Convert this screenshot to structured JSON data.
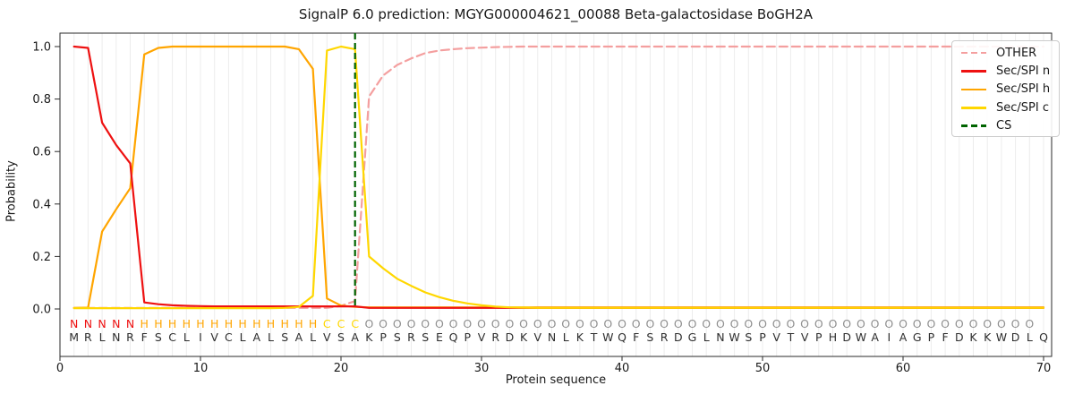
{
  "figure": {
    "title": "SignalP 6.0 prediction: MGYG000004621_00088 Beta-galactosidase BoGH2A"
  },
  "chart_data": {
    "type": "line",
    "title": "SignalP 6.0 prediction: MGYG000004621_00088 Beta-galactosidase BoGH2A",
    "xlabel": "Protein sequence",
    "ylabel": "Probability",
    "xlim": [
      0,
      70.6
    ],
    "ylim": [
      -0.18,
      1.05
    ],
    "grid": "vertical-line-per-residue",
    "legend_position": "upper right",
    "xticks": [
      "0",
      "10",
      "20",
      "30",
      "40",
      "50",
      "60",
      "70"
    ],
    "xtick_values": [
      0,
      10,
      20,
      30,
      40,
      50,
      60,
      70
    ],
    "yticks": [
      "0.0",
      "0.2",
      "0.4",
      "0.6",
      "0.8",
      "1.0"
    ],
    "ytick_values": [
      0,
      0.2,
      0.4,
      0.6,
      0.8,
      1.0
    ],
    "x_start": 1,
    "sequence": "MRLNRFSCLIVCLALSALVSAKPSRSEQPVRDKVNLKTWQFSRDGLNWSPVTVPHDWAIAGPFDKKWDLQ",
    "regions": "NNNNNHHHHHHHHHHHHHCCCOOOOOOOOOOOOOOOOOOOOOOOOOOOOOOOOOOOOOOOOOOOOOOOO",
    "region_colors": {
      "N": "#ee1111",
      "H": "#ffa500",
      "C": "#ffd700",
      "O": "#8f8f8f"
    },
    "residue_color": "#2e2e2e",
    "series": [
      {
        "name": "OTHER",
        "slug": "other",
        "color": "#f49f9f",
        "dash": [
          9,
          5
        ],
        "values": [
          0.004,
          0.004,
          0.004,
          0.004,
          0.004,
          0.004,
          0.004,
          0.004,
          0.004,
          0.004,
          0.004,
          0.004,
          0.004,
          0.004,
          0.004,
          0.004,
          0.004,
          0.004,
          0.004,
          0.012,
          0.03,
          0.81,
          0.89,
          0.93,
          0.955,
          0.975,
          0.985,
          0.99,
          0.994,
          0.996,
          0.998,
          0.999,
          1,
          1,
          1,
          1,
          1,
          1,
          1,
          1,
          1,
          1,
          1,
          1,
          1,
          1,
          1,
          1,
          1,
          1,
          1,
          1,
          1,
          1,
          1,
          1,
          1,
          1,
          1,
          1,
          1,
          1,
          1,
          1,
          1,
          1,
          1,
          1,
          1,
          1
        ]
      },
      {
        "name": "Sec/SPI h",
        "slug": "sec-spi-h",
        "color": "#ffa500",
        "dash": null,
        "values": [
          0.004,
          0.005,
          0.295,
          0.38,
          0.46,
          0.97,
          0.995,
          1,
          1,
          1,
          1,
          1,
          1,
          1,
          1,
          1,
          0.99,
          0.915,
          0.04,
          0.013,
          0.008,
          0.006,
          0.006,
          0.006,
          0.006,
          0.006,
          0.006,
          0.006,
          0.006,
          0.006,
          0.006,
          0.006,
          0.006,
          0.006,
          0.006,
          0.006,
          0.006,
          0.006,
          0.006,
          0.006,
          0.006,
          0.006,
          0.006,
          0.006,
          0.006,
          0.006,
          0.006,
          0.006,
          0.006,
          0.006,
          0.006,
          0.006,
          0.006,
          0.006,
          0.006,
          0.006,
          0.006,
          0.006,
          0.006,
          0.006,
          0.006,
          0.006,
          0.006,
          0.006,
          0.006,
          0.006,
          0.006,
          0.006,
          0.006,
          0.006
        ]
      },
      {
        "name": "Sec/SPI n",
        "slug": "sec-spi-n",
        "color": "#ee1111",
        "dash": null,
        "values": [
          1,
          0.995,
          0.71,
          0.625,
          0.555,
          0.025,
          0.018,
          0.014,
          0.012,
          0.011,
          0.01,
          0.01,
          0.01,
          0.01,
          0.01,
          0.01,
          0.01,
          0.01,
          0.01,
          0.01,
          0.01,
          0.004,
          0.004,
          0.004,
          0.004,
          0.004,
          0.004,
          0.004,
          0.004,
          0.004,
          0.004,
          0.004,
          0.004,
          0.004,
          0.004,
          0.004,
          0.004,
          0.004,
          0.004,
          0.004,
          0.004,
          0.004,
          0.004,
          0.004,
          0.004,
          0.004,
          0.004,
          0.004,
          0.004,
          0.004,
          0.004,
          0.004,
          0.004,
          0.004,
          0.004,
          0.004,
          0.004,
          0.004,
          0.004,
          0.004,
          0.004,
          0.004,
          0.004,
          0.004,
          0.004,
          0.004,
          0.004,
          0.004,
          0.004,
          0.004
        ]
      },
      {
        "name": "Sec/SPI c",
        "slug": "sec-spi-c",
        "color": "#ffd700",
        "dash": null,
        "values": [
          0.003,
          0.003,
          0.003,
          0.003,
          0.003,
          0.003,
          0.003,
          0.003,
          0.003,
          0.003,
          0.003,
          0.003,
          0.003,
          0.003,
          0.003,
          0.004,
          0.008,
          0.05,
          0.985,
          1,
          0.99,
          0.2,
          0.155,
          0.115,
          0.088,
          0.063,
          0.045,
          0.031,
          0.021,
          0.014,
          0.009,
          0.006,
          0.005,
          0.004,
          0.004,
          0.004,
          0.004,
          0.004,
          0.004,
          0.004,
          0.004,
          0.004,
          0.004,
          0.004,
          0.004,
          0.004,
          0.004,
          0.004,
          0.004,
          0.004,
          0.004,
          0.004,
          0.004,
          0.004,
          0.004,
          0.004,
          0.004,
          0.004,
          0.004,
          0.004,
          0.004,
          0.004,
          0.004,
          0.004,
          0.004,
          0.004,
          0.004,
          0.004,
          0.004,
          0.004
        ]
      }
    ],
    "cs_line": {
      "name": "CS",
      "slug": "cs",
      "color": "#006400",
      "dash": [
        7,
        4
      ],
      "position": 21
    },
    "colors": {
      "grid": "#ececec",
      "spine": "#2a2a2a",
      "tick_text": "#1a1a1a"
    }
  },
  "legend": {
    "items": [
      {
        "label": "OTHER",
        "color": "#f49f9f",
        "dashed": true
      },
      {
        "label": "Sec/SPI n",
        "color": "#ee1111",
        "dashed": false
      },
      {
        "label": "Sec/SPI h",
        "color": "#ffa500",
        "dashed": false
      },
      {
        "label": "Sec/SPI c",
        "color": "#ffd700",
        "dashed": false
      },
      {
        "label": "CS",
        "color": "#006400",
        "dashed": true
      }
    ]
  }
}
